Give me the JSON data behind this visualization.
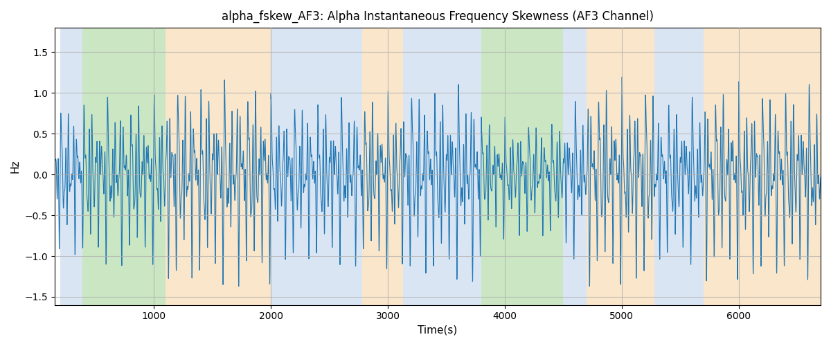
{
  "title": "alpha_fskew_AF3: Alpha Instantaneous Frequency Skewness (AF3 Channel)",
  "xlabel": "Time(s)",
  "ylabel": "Hz",
  "ylim": [
    -1.6,
    1.8
  ],
  "xlim": [
    150,
    6700
  ],
  "line_color": "#1f77b4",
  "line_width": 0.8,
  "bg_color": "#ffffff",
  "grid_color": "#b0b0b0",
  "figsize": [
    12.0,
    5.0
  ],
  "dpi": 100,
  "bands": [
    {
      "xmin": 200,
      "xmax": 390,
      "color": "#aec6e8",
      "alpha": 0.45
    },
    {
      "xmin": 390,
      "xmax": 1100,
      "color": "#8dc87a",
      "alpha": 0.45
    },
    {
      "xmin": 1100,
      "xmax": 2000,
      "color": "#f5c98a",
      "alpha": 0.45
    },
    {
      "xmin": 2000,
      "xmax": 2780,
      "color": "#aec6e8",
      "alpha": 0.45
    },
    {
      "xmin": 2780,
      "xmax": 3130,
      "color": "#f5c98a",
      "alpha": 0.45
    },
    {
      "xmin": 3130,
      "xmax": 3800,
      "color": "#aec6e8",
      "alpha": 0.45
    },
    {
      "xmin": 3800,
      "xmax": 4500,
      "color": "#8dc87a",
      "alpha": 0.45
    },
    {
      "xmin": 4500,
      "xmax": 4700,
      "color": "#aec6e8",
      "alpha": 0.45
    },
    {
      "xmin": 4700,
      "xmax": 5280,
      "color": "#f5c98a",
      "alpha": 0.45
    },
    {
      "xmin": 5280,
      "xmax": 5700,
      "color": "#aec6e8",
      "alpha": 0.45
    },
    {
      "xmin": 5700,
      "xmax": 6700,
      "color": "#f5c98a",
      "alpha": 0.45
    }
  ],
  "xticks": [
    1000,
    2000,
    3000,
    4000,
    5000,
    6000
  ],
  "yticks": [
    -1.5,
    -1.0,
    -0.5,
    0.0,
    0.5,
    1.0,
    1.5
  ],
  "seed": 42,
  "n_points": 6500
}
